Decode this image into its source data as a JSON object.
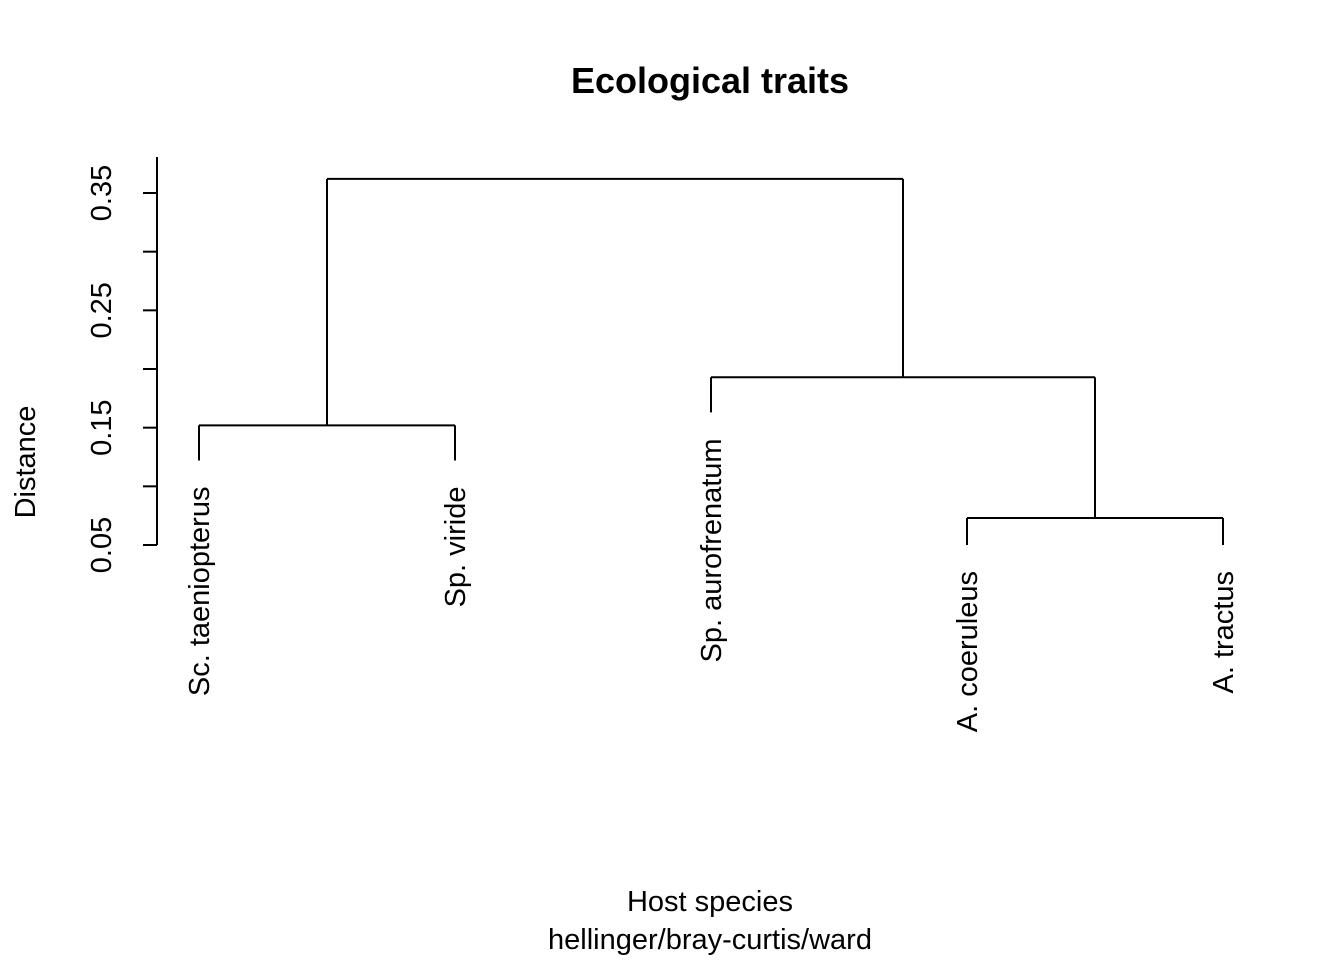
{
  "chart_data": {
    "type": "dendrogram",
    "title": "Ecological traits",
    "xlabel": "Host species",
    "sublabel": "hellinger/bray-curtis/ward",
    "ylabel": "Distance",
    "ylim": [
      0.05,
      0.38
    ],
    "yticks": [
      0.05,
      0.1,
      0.15,
      0.2,
      0.25,
      0.3,
      0.35
    ],
    "ytick_labels": [
      "0.05",
      "",
      "0.15",
      "",
      "0.25",
      "",
      "0.35"
    ],
    "leaves": [
      {
        "label": "Sc. taeniopterus",
        "top": 0.122
      },
      {
        "label": "Sp. viride",
        "top": 0.122
      },
      {
        "label": "Sp. aurofrenatum",
        "top": 0.163
      },
      {
        "label": "A. coeruleus",
        "top": 0.05
      },
      {
        "label": "A. tractus",
        "top": 0.05
      }
    ],
    "merges": [
      {
        "a": "A. coeruleus",
        "b": "A. tractus",
        "height": 0.073
      },
      {
        "a": "Sc. taeniopterus",
        "b": "Sp. viride",
        "height": 0.152
      },
      {
        "a": "Sp. aurofrenatum",
        "b": "(A. coeruleus, A. tractus)",
        "height": 0.193
      },
      {
        "a": "(Sc. taeniopterus, Sp. viride)",
        "b": "(Sp. aurofrenatum, (A. coeruleus, A. tractus))",
        "height": 0.362
      }
    ]
  }
}
